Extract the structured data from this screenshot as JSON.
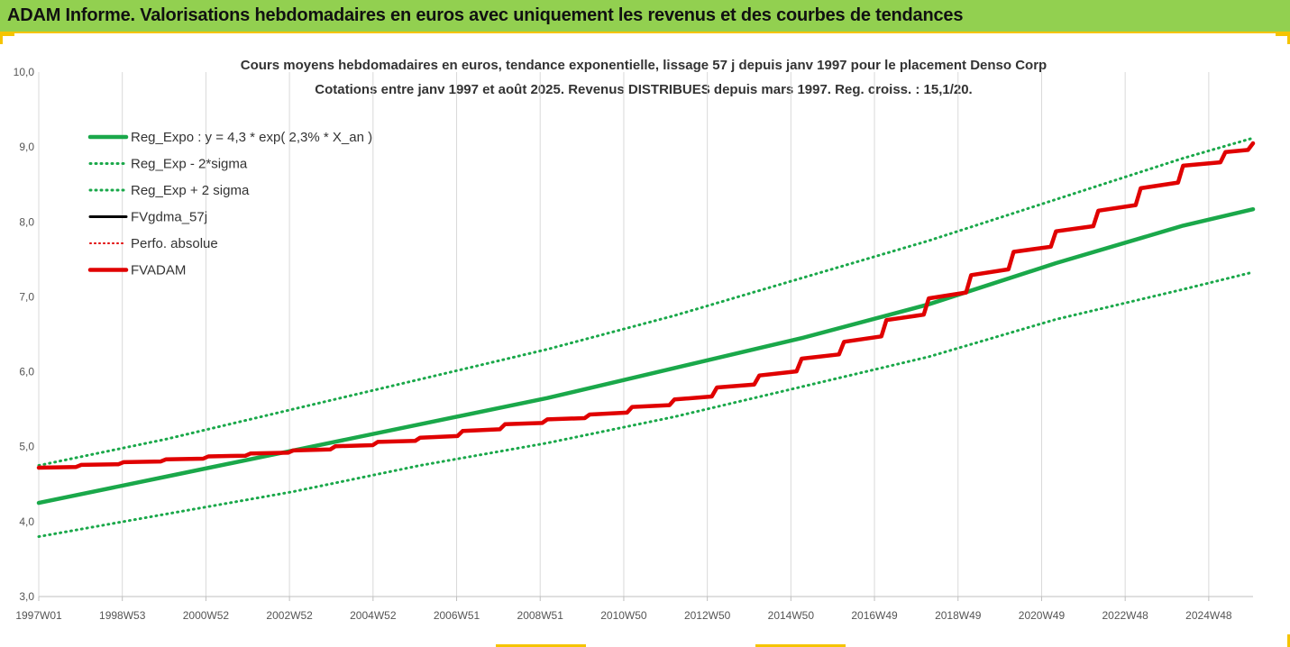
{
  "banner": {
    "title": "ADAM Informe. Valorisations hebdomadaires en euros avec uniquement les revenus et des courbes de tendances"
  },
  "chart_data": {
    "type": "line",
    "title": "Cours moyens hebdomadaires en euros, tendance exponentielle, lissage 57 j depuis janv 1997 pour le placement Denso Corp",
    "subtitle": "Cotations entre janv 1997 et août 2025. Revenus DISTRIBUES depuis mars 1997. Reg. croiss. : 15,1/20.",
    "x_ticks": [
      "1997W01",
      "1998W53",
      "2000W52",
      "2002W52",
      "2004W52",
      "2006W51",
      "2008W51",
      "2010W50",
      "2012W50",
      "2014W50",
      "2016W49",
      "2018W49",
      "2020W49",
      "2022W48",
      "2024W48"
    ],
    "x_range": [
      1997.0,
      2025.65
    ],
    "y_ticks": [
      "3,0",
      "4,0",
      "5,0",
      "6,0",
      "7,0",
      "8,0",
      "9,0",
      "10,0"
    ],
    "ylim": [
      3,
      10
    ],
    "grid": "vertical",
    "legend": "top-left",
    "series": [
      {
        "name": "Reg_Expo : y = 4,3 * exp( 2,3% *  X_an )",
        "color": "#1aa84a",
        "style": "solid",
        "x": [
          1997,
          2000,
          2003,
          2006,
          2009,
          2012,
          2015,
          2018,
          2021,
          2024,
          2025.65
        ],
        "y": [
          4.25,
          4.6,
          4.95,
          5.3,
          5.65,
          6.05,
          6.45,
          6.9,
          7.45,
          7.95,
          8.17
        ]
      },
      {
        "name": "Reg_Exp - 2*sigma",
        "color": "#1aa84a",
        "style": "dotted",
        "x": [
          1997,
          2000,
          2003,
          2006,
          2009,
          2012,
          2015,
          2018,
          2021,
          2024,
          2025.65
        ],
        "y": [
          3.8,
          4.1,
          4.4,
          4.75,
          5.05,
          5.4,
          5.8,
          6.2,
          6.7,
          7.1,
          7.33
        ]
      },
      {
        "name": "Reg_Exp + 2 sigma",
        "color": "#1aa84a",
        "style": "dotted",
        "x": [
          1997,
          2000,
          2003,
          2006,
          2009,
          2012,
          2015,
          2018,
          2021,
          2024,
          2025.65
        ],
        "y": [
          4.75,
          5.1,
          5.5,
          5.9,
          6.3,
          6.75,
          7.25,
          7.75,
          8.3,
          8.85,
          9.12
        ]
      },
      {
        "name": "FVgdma_57j",
        "color": "#000000",
        "style": "solid",
        "x": [
          1997,
          2000,
          2003,
          2006,
          2008,
          2010,
          2012,
          2014,
          2016,
          2018,
          2020,
          2022,
          2024,
          2025.65
        ],
        "y": [
          4.72,
          4.83,
          4.95,
          5.12,
          5.3,
          5.43,
          5.63,
          5.95,
          6.4,
          6.98,
          7.6,
          8.15,
          8.75,
          9.05
        ]
      },
      {
        "name": "Perfo. absolue",
        "color": "#e00000",
        "style": "dotted",
        "x": [
          1997,
          2000,
          2003,
          2006,
          2008,
          2010,
          2012,
          2014,
          2016,
          2018,
          2020,
          2022,
          2024,
          2025.65
        ],
        "y": [
          4.72,
          4.83,
          4.95,
          5.12,
          5.3,
          5.43,
          5.63,
          5.95,
          6.4,
          6.98,
          7.6,
          8.15,
          8.75,
          9.05
        ]
      },
      {
        "name": "FVADAM",
        "color": "#e00000",
        "style": "solid",
        "x": [
          1997,
          2000,
          2003,
          2006,
          2008,
          2010,
          2012,
          2014,
          2016,
          2018,
          2020,
          2022,
          2024,
          2025.65
        ],
        "y": [
          4.72,
          4.83,
          4.95,
          5.12,
          5.3,
          5.43,
          5.63,
          5.95,
          6.4,
          6.98,
          7.6,
          8.15,
          8.75,
          9.05
        ]
      }
    ]
  }
}
